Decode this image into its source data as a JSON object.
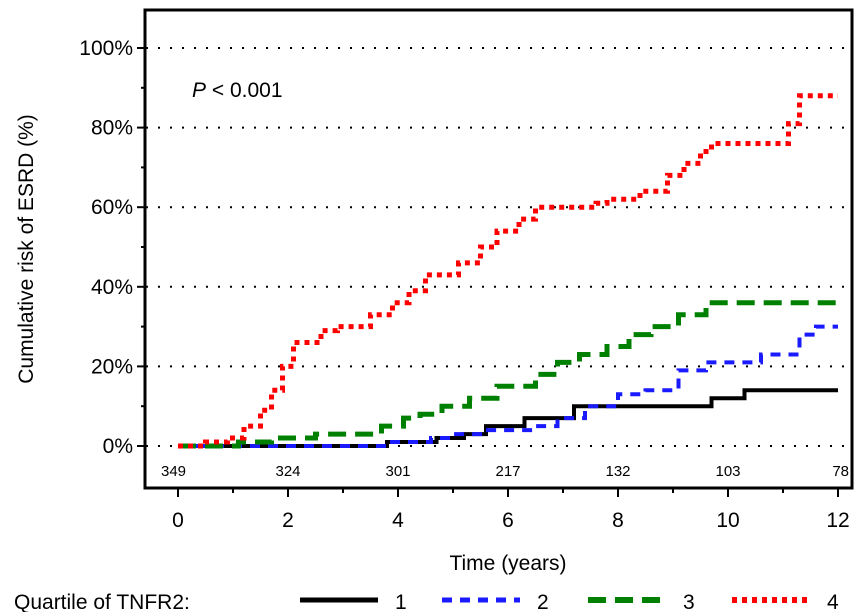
{
  "chart_data": {
    "type": "line",
    "step": true,
    "xlabel": "Time (years)",
    "ylabel": "Cumulative risk of ESRD (%)",
    "xlim": [
      0,
      12
    ],
    "ylim": [
      -5,
      105
    ],
    "x_ticks": [
      {
        "value": 0,
        "label": "0"
      },
      {
        "value": 2,
        "label": "2"
      },
      {
        "value": 4,
        "label": "4"
      },
      {
        "value": 6,
        "label": "6"
      },
      {
        "value": 8,
        "label": "8"
      },
      {
        "value": 10,
        "label": "10"
      },
      {
        "value": 12,
        "label": "12"
      }
    ],
    "y_ticks": [
      {
        "value": 0,
        "label": "0%"
      },
      {
        "value": 20,
        "label": "20%"
      },
      {
        "value": 40,
        "label": "40%"
      },
      {
        "value": 60,
        "label": "60%"
      },
      {
        "value": 80,
        "label": "80%"
      },
      {
        "value": 100,
        "label": "100%"
      }
    ],
    "grid": "horizontal dotted",
    "annotation": {
      "p_italic": "P",
      "p_rest": " < 0.001"
    },
    "at_risk": [
      {
        "x": 0,
        "label": "349"
      },
      {
        "x": 2,
        "label": "324"
      },
      {
        "x": 4,
        "label": "301"
      },
      {
        "x": 6,
        "label": "217"
      },
      {
        "x": 8,
        "label": "132"
      },
      {
        "x": 10,
        "label": "103"
      },
      {
        "x": 12,
        "label": "78"
      }
    ],
    "legend": {
      "title": "Quartile of TNFR2:",
      "placement": "bottom"
    },
    "series": [
      {
        "name": "1",
        "color": "#000000",
        "style": "solid",
        "points": [
          [
            0,
            0
          ],
          [
            3.8,
            0
          ],
          [
            3.8,
            1
          ],
          [
            4.7,
            1
          ],
          [
            4.7,
            2
          ],
          [
            5.2,
            2
          ],
          [
            5.2,
            3
          ],
          [
            5.6,
            3
          ],
          [
            5.6,
            5
          ],
          [
            6.3,
            5
          ],
          [
            6.3,
            7
          ],
          [
            6.9,
            7
          ],
          [
            6.9,
            7
          ],
          [
            7.2,
            7
          ],
          [
            7.2,
            10
          ],
          [
            9.7,
            10
          ],
          [
            9.7,
            12
          ],
          [
            10.3,
            12
          ],
          [
            10.3,
            14
          ],
          [
            12,
            14
          ]
        ]
      },
      {
        "name": "2",
        "color": "#1a1aff",
        "style": "dash",
        "points": [
          [
            0,
            0
          ],
          [
            3.8,
            0
          ],
          [
            3.8,
            1
          ],
          [
            4.6,
            1
          ],
          [
            4.6,
            2
          ],
          [
            5.0,
            2
          ],
          [
            5.0,
            3
          ],
          [
            5.6,
            3
          ],
          [
            5.6,
            4
          ],
          [
            6.5,
            4
          ],
          [
            6.5,
            5
          ],
          [
            6.9,
            5
          ],
          [
            6.9,
            7
          ],
          [
            7.4,
            7
          ],
          [
            7.4,
            10
          ],
          [
            8.0,
            10
          ],
          [
            8.0,
            13
          ],
          [
            8.5,
            13
          ],
          [
            8.5,
            14
          ],
          [
            9.1,
            14
          ],
          [
            9.1,
            19
          ],
          [
            9.6,
            19
          ],
          [
            9.6,
            21
          ],
          [
            10.6,
            21
          ],
          [
            10.6,
            23
          ],
          [
            11.3,
            23
          ],
          [
            11.3,
            28
          ],
          [
            11.6,
            28
          ],
          [
            11.6,
            30
          ],
          [
            12,
            30
          ]
        ]
      },
      {
        "name": "3",
        "color": "#008000",
        "style": "longdash",
        "points": [
          [
            0,
            0
          ],
          [
            1.1,
            0
          ],
          [
            1.1,
            1
          ],
          [
            1.7,
            1
          ],
          [
            1.7,
            2
          ],
          [
            2.5,
            2
          ],
          [
            2.5,
            3
          ],
          [
            3.7,
            3
          ],
          [
            3.7,
            5
          ],
          [
            4.1,
            5
          ],
          [
            4.1,
            7
          ],
          [
            4.4,
            7
          ],
          [
            4.4,
            8
          ],
          [
            4.8,
            8
          ],
          [
            4.8,
            10
          ],
          [
            5.3,
            10
          ],
          [
            5.3,
            12
          ],
          [
            5.8,
            12
          ],
          [
            5.8,
            15
          ],
          [
            6.5,
            15
          ],
          [
            6.5,
            18
          ],
          [
            6.9,
            18
          ],
          [
            6.9,
            21
          ],
          [
            7.3,
            21
          ],
          [
            7.3,
            23
          ],
          [
            7.8,
            23
          ],
          [
            7.8,
            25
          ],
          [
            8.2,
            25
          ],
          [
            8.2,
            28
          ],
          [
            8.6,
            28
          ],
          [
            8.6,
            30
          ],
          [
            9.1,
            30
          ],
          [
            9.1,
            33
          ],
          [
            9.6,
            33
          ],
          [
            9.6,
            36
          ],
          [
            12,
            36
          ]
        ]
      },
      {
        "name": "4",
        "color": "#ff0000",
        "style": "dot",
        "points": [
          [
            0,
            0
          ],
          [
            0.5,
            0
          ],
          [
            0.5,
            1
          ],
          [
            0.9,
            1
          ],
          [
            0.9,
            2
          ],
          [
            1.2,
            2
          ],
          [
            1.2,
            5
          ],
          [
            1.5,
            5
          ],
          [
            1.5,
            9
          ],
          [
            1.7,
            9
          ],
          [
            1.7,
            14
          ],
          [
            1.9,
            14
          ],
          [
            1.9,
            20
          ],
          [
            2.1,
            20
          ],
          [
            2.1,
            26
          ],
          [
            2.6,
            26
          ],
          [
            2.6,
            29
          ],
          [
            2.9,
            29
          ],
          [
            2.9,
            30
          ],
          [
            3.5,
            30
          ],
          [
            3.5,
            33
          ],
          [
            3.9,
            33
          ],
          [
            3.9,
            36
          ],
          [
            4.2,
            36
          ],
          [
            4.2,
            39
          ],
          [
            4.5,
            39
          ],
          [
            4.5,
            43
          ],
          [
            5.1,
            43
          ],
          [
            5.1,
            46
          ],
          [
            5.5,
            46
          ],
          [
            5.5,
            50
          ],
          [
            5.8,
            50
          ],
          [
            5.8,
            54
          ],
          [
            6.2,
            54
          ],
          [
            6.2,
            57
          ],
          [
            6.5,
            57
          ],
          [
            6.5,
            60
          ],
          [
            7.6,
            60
          ],
          [
            7.6,
            61
          ],
          [
            7.8,
            61
          ],
          [
            7.8,
            62
          ],
          [
            8.4,
            62
          ],
          [
            8.4,
            64
          ],
          [
            8.9,
            64
          ],
          [
            8.9,
            68
          ],
          [
            9.2,
            68
          ],
          [
            9.2,
            71
          ],
          [
            9.5,
            71
          ],
          [
            9.5,
            74
          ],
          [
            9.7,
            74
          ],
          [
            9.7,
            76
          ],
          [
            11.1,
            76
          ],
          [
            11.1,
            81
          ],
          [
            11.3,
            81
          ],
          [
            11.3,
            88
          ],
          [
            12,
            88
          ]
        ]
      }
    ]
  }
}
